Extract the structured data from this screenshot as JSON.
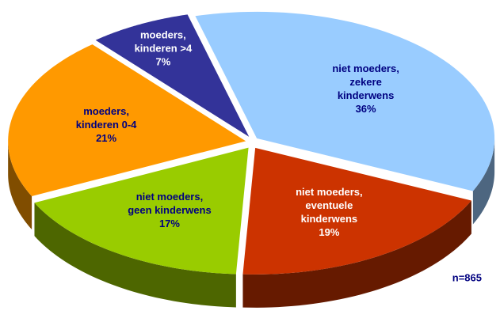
{
  "chart_data": {
    "type": "pie",
    "categories": [
      [
        "niet moeders,",
        "zekere",
        "kinderwens"
      ],
      [
        "niet moeders,",
        "eventuele",
        "kinderwens"
      ],
      [
        "niet moeders,",
        "geen kinderwens"
      ],
      [
        "moeders,",
        "kinderen 0-4"
      ],
      [
        "moeders,",
        "kinderen >4"
      ]
    ],
    "values": [
      36,
      19,
      17,
      21,
      7
    ],
    "value_labels": [
      "36%",
      "19%",
      "17%",
      "21%",
      "7%"
    ],
    "colors": [
      "#99ccff",
      "#cc3300",
      "#99cc00",
      "#ff9900",
      "#333399"
    ],
    "label_colors": [
      "#000080",
      "#ffffff",
      "#000080",
      "#000080",
      "#ffffff"
    ],
    "annotation": "n=865"
  }
}
